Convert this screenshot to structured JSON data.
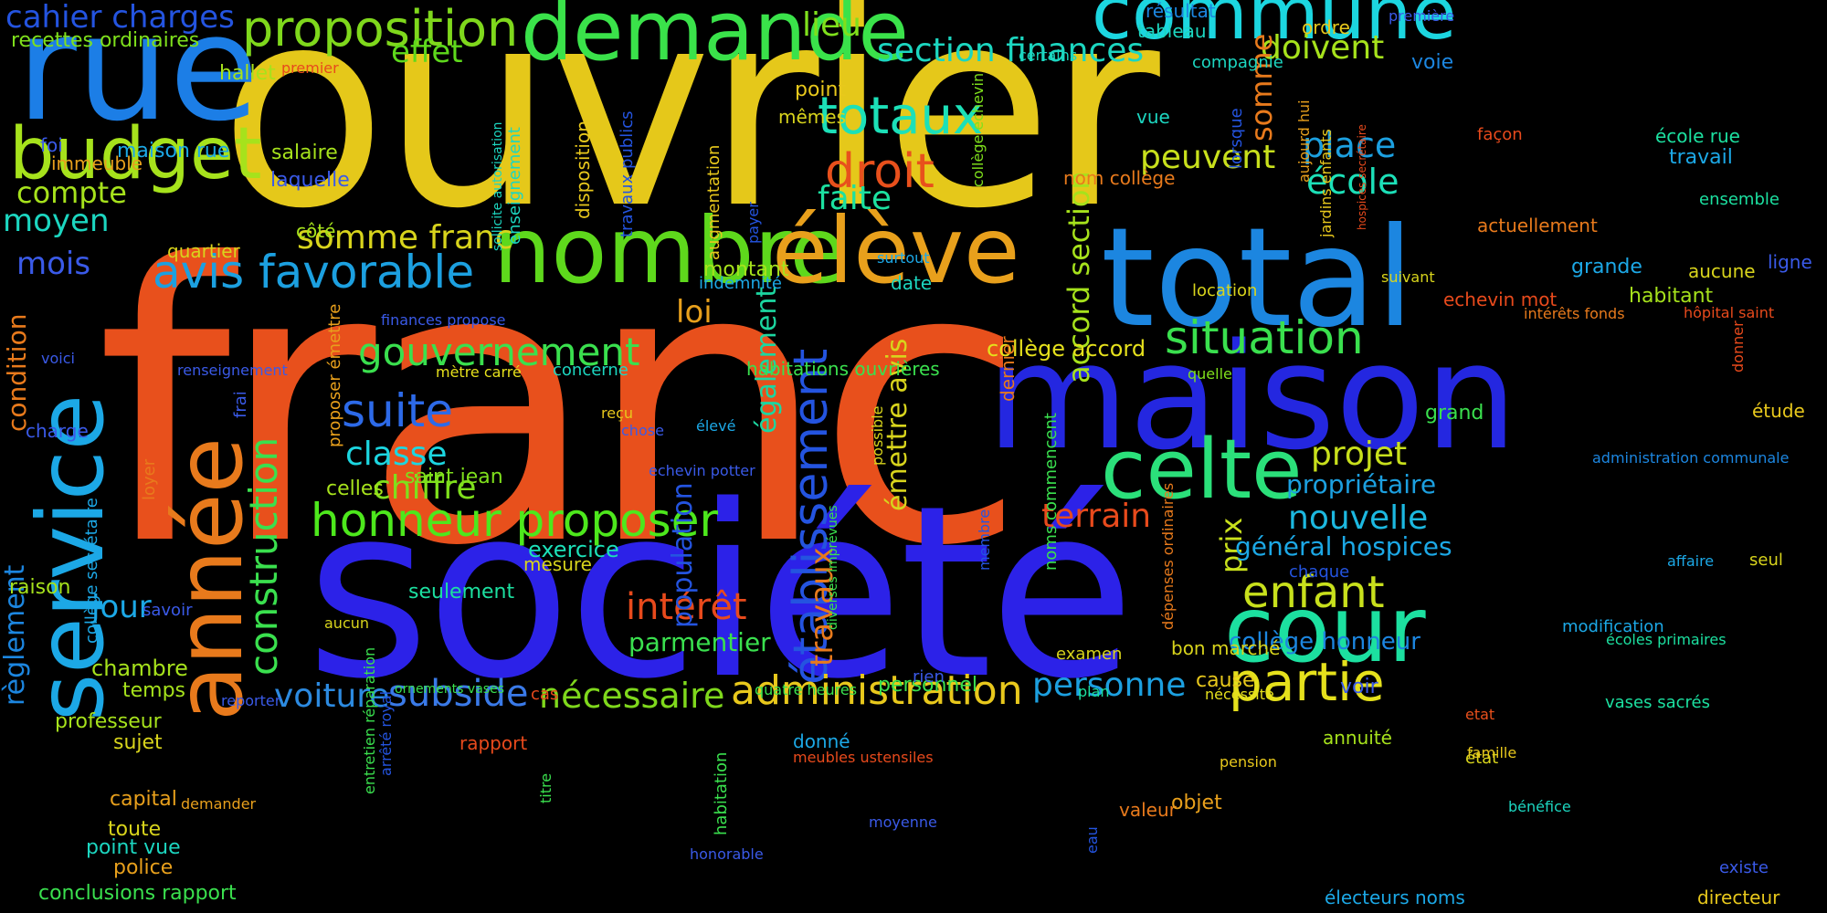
{
  "words": [
    {
      "text": "franc",
      "color": "#E8501C"
    },
    {
      "text": "ouvrier",
      "color": "#E5C81A"
    },
    {
      "text": "société",
      "color": "#2C22E8"
    },
    {
      "text": "maison",
      "color": "#2427E0"
    },
    {
      "text": "rue",
      "color": "#1C7EE6"
    },
    {
      "text": "total",
      "color": "#1C86E0"
    },
    {
      "text": "année",
      "color": "#E87A1C"
    },
    {
      "text": "service",
      "color": "#1CA8E6"
    },
    {
      "text": "demande",
      "color": "#3AE24A"
    },
    {
      "text": "commune",
      "color": "#1CD6E0"
    },
    {
      "text": "nombre",
      "color": "#5ED81C"
    },
    {
      "text": "élève",
      "color": "#E8A01C"
    },
    {
      "text": "cour",
      "color": "#1CE0A0"
    },
    {
      "text": "celte",
      "color": "#2BE07A"
    },
    {
      "text": "budget",
      "color": "#A6E21C"
    },
    {
      "text": "proposition",
      "color": "#7FD81C"
    },
    {
      "text": "établissement",
      "color": "#2454E0"
    },
    {
      "text": "construction",
      "color": "#3AE04E"
    },
    {
      "text": "honneur proposer",
      "color": "#4DE81C"
    },
    {
      "text": "avis favorable",
      "color": "#1CA0E0"
    },
    {
      "text": "suite",
      "color": "#2D6AE8"
    },
    {
      "text": "gouvernement",
      "color": "#3AE04E"
    },
    {
      "text": "partie",
      "color": "#E5E01C"
    },
    {
      "text": "enfant",
      "color": "#C8E01C"
    },
    {
      "text": "administration",
      "color": "#E8C81C"
    },
    {
      "text": "droit",
      "color": "#E8501C"
    },
    {
      "text": "totaux",
      "color": "#1CE0B8"
    },
    {
      "text": "situation",
      "color": "#3AE04E"
    },
    {
      "text": "section finances",
      "color": "#1CD6C0"
    },
    {
      "text": "voiture",
      "color": "#2C8AE0"
    },
    {
      "text": "subside",
      "color": "#3A7AE8"
    },
    {
      "text": "nécessaire",
      "color": "#7FD81C"
    },
    {
      "text": "terrain",
      "color": "#E84A1C"
    },
    {
      "text": "personne",
      "color": "#1CA0E0"
    },
    {
      "text": "projet",
      "color": "#C8E01C"
    },
    {
      "text": "nouvelle",
      "color": "#1CB8E0"
    },
    {
      "text": "chiffre",
      "color": "#7FE01C"
    },
    {
      "text": "classe",
      "color": "#1CD6E0"
    },
    {
      "text": "somme franc",
      "color": "#D8D41C"
    },
    {
      "text": "intérêt",
      "color": "#E84A1C"
    },
    {
      "text": "place",
      "color": "#1CA0E0"
    },
    {
      "text": "école",
      "color": "#1CE0B8"
    },
    {
      "text": "peuvent",
      "color": "#C8E01C"
    },
    {
      "text": "doivent",
      "color": "#A6E21C"
    },
    {
      "text": "faite",
      "color": "#1CE0A0"
    },
    {
      "text": "lieu",
      "color": "#7FE01C"
    },
    {
      "text": "effet",
      "color": "#5ED81C"
    },
    {
      "text": "compte",
      "color": "#A6E21C"
    },
    {
      "text": "moyen",
      "color": "#1CD6C0"
    },
    {
      "text": "mois",
      "color": "#3A5AE8"
    },
    {
      "text": "cahier charges",
      "color": "#2454E0"
    },
    {
      "text": "recettes ordinaires",
      "color": "#7FE01C"
    },
    {
      "text": "jour",
      "color": "#1CA8E6"
    },
    {
      "text": "loi",
      "color": "#E8A01C"
    },
    {
      "text": "travaux",
      "color": "#E87A1C"
    },
    {
      "text": "population",
      "color": "#2454E0"
    },
    {
      "text": "également",
      "color": "#1CD6A0"
    },
    {
      "text": "accord section",
      "color": "#A6E21C"
    },
    {
      "text": "émettre avis",
      "color": "#D8D41C"
    },
    {
      "text": "somme",
      "color": "#E87A1C"
    },
    {
      "text": "prix",
      "color": "#C8E01C"
    },
    {
      "text": "collège accord",
      "color": "#E5E01C"
    },
    {
      "text": "condition",
      "color": "#E87A1C"
    },
    {
      "text": "règlement",
      "color": "#1C86E0"
    },
    {
      "text": "propriétaire",
      "color": "#1CA0E0"
    },
    {
      "text": "général hospices",
      "color": "#1CA8E6"
    },
    {
      "text": "collège honneur",
      "color": "#1C86E0"
    },
    {
      "text": "parmentier",
      "color": "#3AE04E"
    },
    {
      "text": "exercice",
      "color": "#1CE0B8"
    },
    {
      "text": "mesure",
      "color": "#D8D41C"
    },
    {
      "text": "seulement",
      "color": "#1CE0A0"
    },
    {
      "text": "saint jean",
      "color": "#7FE01C"
    },
    {
      "text": "celles",
      "color": "#A6E21C"
    },
    {
      "text": "chambre",
      "color": "#A6E21C"
    },
    {
      "text": "temps",
      "color": "#A6E21C"
    },
    {
      "text": "professeur",
      "color": "#A6E21C"
    },
    {
      "text": "sujet",
      "color": "#D8D41C"
    },
    {
      "text": "capital",
      "color": "#E8A01C"
    },
    {
      "text": "toute",
      "color": "#D8D41C"
    },
    {
      "text": "point vue",
      "color": "#1CD6C0"
    },
    {
      "text": "police",
      "color": "#E8A01C"
    },
    {
      "text": "conclusions rapport",
      "color": "#3AE04E"
    },
    {
      "text": "maison rue",
      "color": "#1CA8E6"
    },
    {
      "text": "salaire",
      "color": "#A6E21C"
    },
    {
      "text": "laquelle",
      "color": "#3A5AE8"
    },
    {
      "text": "côté",
      "color": "#A6E21C"
    },
    {
      "text": "quartier",
      "color": "#D8D41C"
    },
    {
      "text": "immeuble",
      "color": "#E8A01C"
    },
    {
      "text": "foi",
      "color": "#3A5AE8"
    },
    {
      "text": "hallet",
      "color": "#A6E21C"
    },
    {
      "text": "premier",
      "color": "#E84A1C"
    },
    {
      "text": "raison",
      "color": "#A6E21C"
    },
    {
      "text": "charge",
      "color": "#3A5AE8"
    },
    {
      "text": "voici",
      "color": "#3A5AE8"
    },
    {
      "text": "savoir",
      "color": "#3A5AE8"
    },
    {
      "text": "loyer",
      "color": "#E87A1C"
    },
    {
      "text": "frai",
      "color": "#3A5AE8"
    },
    {
      "text": "aucun",
      "color": "#D8D41C"
    },
    {
      "text": "reporter",
      "color": "#3A5AE8"
    },
    {
      "text": "demander",
      "color": "#E8A01C"
    },
    {
      "text": "collège secrétaire",
      "color": "#1CA8E6"
    },
    {
      "text": "résultat",
      "color": "#1C86E0"
    },
    {
      "text": "tableau",
      "color": "#1CD6C0"
    },
    {
      "text": "ordre",
      "color": "#E8C81C"
    },
    {
      "text": "première",
      "color": "#3A5AE8"
    },
    {
      "text": "certains",
      "color": "#1CD6C0"
    },
    {
      "text": "compagnie",
      "color": "#1CD6C0"
    },
    {
      "text": "voie",
      "color": "#1C86E0"
    },
    {
      "text": "point",
      "color": "#E8C81C"
    },
    {
      "text": "mêmes",
      "color": "#D8D41C"
    },
    {
      "text": "vue",
      "color": "#1CD6C0"
    },
    {
      "text": "nom collège",
      "color": "#E87A1C"
    },
    {
      "text": "façon",
      "color": "#E84A1C"
    },
    {
      "text": "école rue",
      "color": "#1CE0A0"
    },
    {
      "text": "travail",
      "color": "#1CA8E6"
    },
    {
      "text": "ensemble",
      "color": "#1CE0A0"
    },
    {
      "text": "actuellement",
      "color": "#E87A1C"
    },
    {
      "text": "grande",
      "color": "#1CA8E6"
    },
    {
      "text": "aucune",
      "color": "#D8D41C"
    },
    {
      "text": "ligne",
      "color": "#3A5AE8"
    },
    {
      "text": "suivant",
      "color": "#D8D41C"
    },
    {
      "text": "habitant",
      "color": "#A6E21C"
    },
    {
      "text": "intérêts fonds",
      "color": "#E87A1C"
    },
    {
      "text": "hôpital saint",
      "color": "#E84A1C"
    },
    {
      "text": "echevin mot",
      "color": "#E84A1C"
    },
    {
      "text": "location",
      "color": "#D8D41C"
    },
    {
      "text": "date",
      "color": "#1CD6C0"
    },
    {
      "text": "indemnité",
      "color": "#1CA8E6"
    },
    {
      "text": "montant",
      "color": "#A6E21C"
    },
    {
      "text": "surtout",
      "color": "#1CA8E6"
    },
    {
      "text": "quelle",
      "color": "#7FE01C"
    },
    {
      "text": "grand",
      "color": "#3AE04E"
    },
    {
      "text": "étude",
      "color": "#E8C81C"
    },
    {
      "text": "administration communale",
      "color": "#1C86E0"
    },
    {
      "text": "affaire",
      "color": "#1CA8E6"
    },
    {
      "text": "seul",
      "color": "#D8D41C"
    },
    {
      "text": "chaque",
      "color": "#2454E0"
    },
    {
      "text": "modification",
      "color": "#1CA8E6"
    },
    {
      "text": "écoles primaires",
      "color": "#1CE0A0"
    },
    {
      "text": "vases sacrés",
      "color": "#1CE0A0"
    },
    {
      "text": "habitations ouvrières",
      "color": "#3AE04E"
    },
    {
      "text": "renseignement",
      "color": "#3A5AE8"
    },
    {
      "text": "finances propose",
      "color": "#3A5AE8"
    },
    {
      "text": "mètre carré",
      "color": "#E5E01C"
    },
    {
      "text": "concerne",
      "color": "#1CD6C0"
    },
    {
      "text": "reçu",
      "color": "#E8C81C"
    },
    {
      "text": "chose",
      "color": "#3A5AE8"
    },
    {
      "text": "élevé",
      "color": "#1CA8E6"
    },
    {
      "text": "echevin potter",
      "color": "#3A5AE8"
    },
    {
      "text": "bon marché",
      "color": "#D8D41C"
    },
    {
      "text": "cause",
      "color": "#E8C81C"
    },
    {
      "text": "nécessité",
      "color": "#E5E01C"
    },
    {
      "text": "voir",
      "color": "#3A5AE8"
    },
    {
      "text": "etat",
      "color": "#E8501C"
    },
    {
      "text": "état",
      "color": "#D8D41C"
    },
    {
      "text": "annuité",
      "color": "#A6E21C"
    },
    {
      "text": "famille",
      "color": "#E8C81C"
    },
    {
      "text": "pension",
      "color": "#E8C81C"
    },
    {
      "text": "bénéfice",
      "color": "#1CD6C0"
    },
    {
      "text": "existe",
      "color": "#3A5AE8"
    },
    {
      "text": "électeurs noms",
      "color": "#1CA8E6"
    },
    {
      "text": "directeur",
      "color": "#E8C81C"
    },
    {
      "text": "valeur",
      "color": "#E87A1C"
    },
    {
      "text": "objet",
      "color": "#E8A01C"
    },
    {
      "text": "rapport",
      "color": "#E84A1C"
    },
    {
      "text": "meubles ustensiles",
      "color": "#E84A1C"
    },
    {
      "text": "donné",
      "color": "#1CA8E6"
    },
    {
      "text": "moyenne",
      "color": "#3A5AE8"
    },
    {
      "text": "honorable",
      "color": "#3A5AE8"
    },
    {
      "text": "personnel",
      "color": "#3AE04E"
    },
    {
      "text": "plan",
      "color": "#1CE0A0"
    },
    {
      "text": "examen",
      "color": "#D8D41C"
    },
    {
      "text": "rien",
      "color": "#3A5AE8"
    },
    {
      "text": "cas",
      "color": "#E84A1C"
    },
    {
      "text": "quatre heures",
      "color": "#3AE04E"
    },
    {
      "text": "ornements vases",
      "color": "#3AE04E"
    },
    {
      "text": "hospices secrétaire",
      "color": "#E84A1C"
    },
    {
      "text": "jardins enfants",
      "color": "#E8C81C"
    },
    {
      "text": "aujourd hui",
      "color": "#E8A01C"
    },
    {
      "text": "collège echevin",
      "color": "#7FE01C"
    },
    {
      "text": "lorsque",
      "color": "#2454E0"
    },
    {
      "text": "payer",
      "color": "#2454E0"
    },
    {
      "text": "augmentation",
      "color": "#E8C81C"
    },
    {
      "text": "disposition",
      "color": "#E8C81C"
    },
    {
      "text": "travaux publics",
      "color": "#2454E0"
    },
    {
      "text": "enseignement",
      "color": "#1CD6C0"
    },
    {
      "text": "sollicite autorisation",
      "color": "#1CD6C0"
    },
    {
      "text": "proposer émettre",
      "color": "#E8A01C"
    },
    {
      "text": "entretien réparation",
      "color": "#3AE04E"
    },
    {
      "text": "arrêté royal",
      "color": "#2454E0"
    },
    {
      "text": "dernier",
      "color": "#E87A1C"
    },
    {
      "text": "noms commencent",
      "color": "#3AE04E"
    },
    {
      "text": "dépenses ordinaires",
      "color": "#E87A1C"
    },
    {
      "text": "membre",
      "color": "#2454E0"
    },
    {
      "text": "possible",
      "color": "#D8D41C"
    },
    {
      "text": "diverses imprévues",
      "color": "#3AE04E"
    },
    {
      "text": "titre",
      "color": "#3AE04E"
    },
    {
      "text": "habitation",
      "color": "#3AE04E"
    },
    {
      "text": "eau",
      "color": "#2454E0"
    },
    {
      "text": "donner",
      "color": "#E84A1C"
    }
  ]
}
